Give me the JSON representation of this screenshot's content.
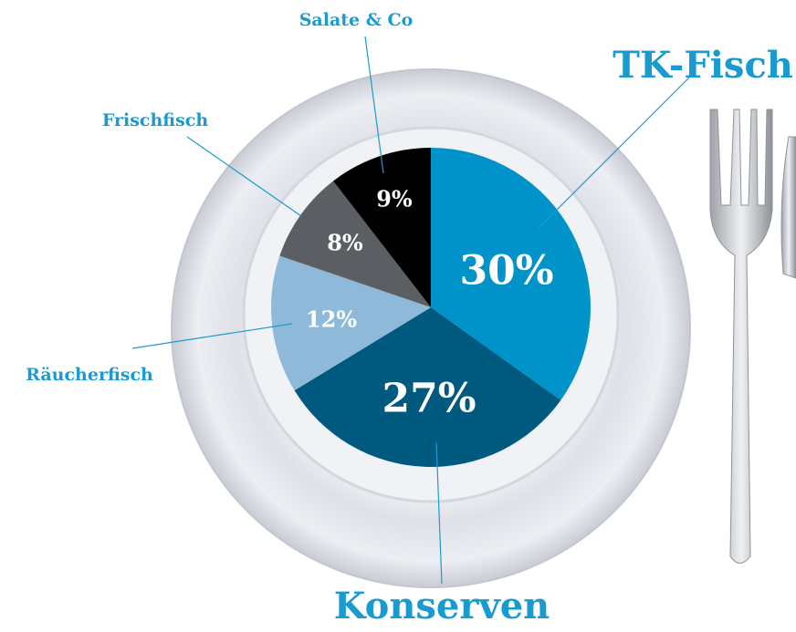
{
  "chart_data": {
    "type": "pie",
    "categories": [
      "TK-Fisch",
      "Konserven",
      "Räucherfisch",
      "Frischfisch",
      "Salate & Co"
    ],
    "values": [
      30,
      27,
      12,
      8,
      9
    ],
    "value_labels": [
      "30%",
      "27%",
      "12%",
      "8%",
      "9%"
    ],
    "colors": [
      "#0093c9",
      "#005a80",
      "#8fb9d9",
      "#5b5e63",
      "#000000"
    ]
  }
}
